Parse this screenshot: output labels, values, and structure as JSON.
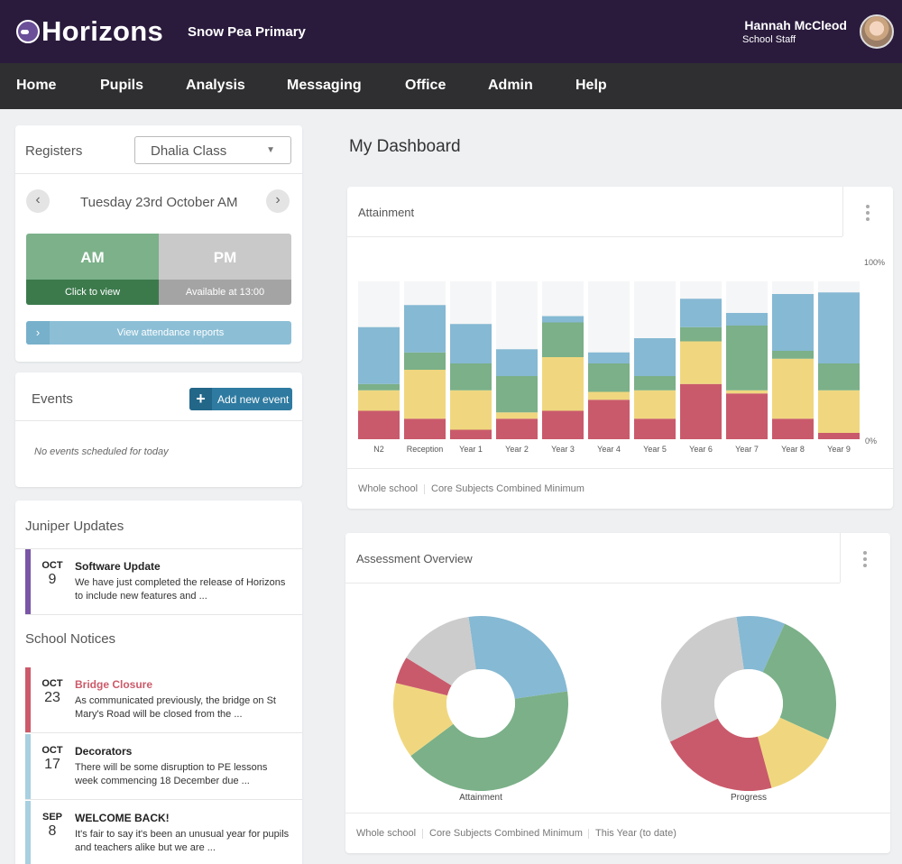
{
  "header": {
    "brand": "Horizons",
    "school": "Snow Pea Primary",
    "user_name": "Hannah McCleod",
    "user_role": "School Staff"
  },
  "nav": [
    "Home",
    "Pupils",
    "Analysis",
    "Messaging",
    "Office",
    "Admin",
    "Help"
  ],
  "registers": {
    "title": "Registers",
    "selected_class": "Dhalia Class",
    "date": "Tuesday 23rd October AM",
    "am_label": "AM",
    "am_sub": "Click to view",
    "pm_label": "PM",
    "pm_sub": "Available at 13:00",
    "attendance_button": "View attendance reports"
  },
  "events": {
    "title": "Events",
    "add_button": "Add new event",
    "empty": "No events scheduled for today"
  },
  "juniper_updates": {
    "title": "Juniper Updates",
    "items": [
      {
        "month": "OCT",
        "day": "9",
        "title": "Software Update",
        "body": "We have just completed the release of Horizons to include new features and ...",
        "color": "#7a56a6",
        "title_color": "#222"
      }
    ]
  },
  "school_notices": {
    "title": "School Notices",
    "items": [
      {
        "month": "OCT",
        "day": "23",
        "title": "Bridge Closure",
        "body": "As communicated previously, the bridge on St Mary's Road will be closed from the ...",
        "color": "#cc5a6a",
        "title_color": "#cc5a6a"
      },
      {
        "month": "OCT",
        "day": "17",
        "title": "Decorators",
        "body": "There will be some disruption to PE lessons week commencing 18 December due ...",
        "color": "#a8d0e0",
        "title_color": "#222"
      },
      {
        "month": "SEP",
        "day": "8",
        "title": "WELCOME BACK!",
        "body": "It's fair to say it's been an unusual year for pupils and teachers alike but we are ...",
        "color": "#a8d0e0",
        "title_color": "#222"
      }
    ]
  },
  "dashboard": {
    "title": "My Dashboard"
  },
  "attainment_card": {
    "title": "Attainment",
    "footer": [
      "Whole school",
      "Core Subjects Combined Minimum"
    ]
  },
  "assessment_card": {
    "title": "Assessment Overview",
    "footer": [
      "Whole school",
      "Core Subjects Combined Minimum",
      "This Year (to date)"
    ]
  },
  "colors": {
    "red": "#c95a6b",
    "yellow": "#f0d77f",
    "green": "#7bb088",
    "blue": "#86b9d3",
    "grey": "#cccccc",
    "empty": "#f5f6f7"
  },
  "chart_data": [
    {
      "type": "bar",
      "stacked": true,
      "categories": [
        "N2",
        "Reception",
        "Year 1",
        "Year 2",
        "Year 3",
        "Year 4",
        "Year 5",
        "Year 6",
        "Year 7",
        "Year 8",
        "Year 9"
      ],
      "ylim": [
        0,
        100
      ],
      "ytick_labels": [
        "100%",
        "0%"
      ],
      "series": [
        {
          "color": "#c95a6b",
          "values": [
            18,
            13,
            6,
            13,
            18,
            25,
            13,
            35,
            29,
            13,
            4
          ]
        },
        {
          "color": "#f0d77f",
          "values": [
            13,
            31,
            25,
            4,
            34,
            5,
            18,
            27,
            2,
            38,
            27
          ]
        },
        {
          "color": "#7bb088",
          "values": [
            4,
            11,
            17,
            23,
            22,
            18,
            9,
            9,
            41,
            5,
            17
          ]
        },
        {
          "color": "#86b9d3",
          "values": [
            36,
            30,
            25,
            17,
            4,
            7,
            24,
            18,
            8,
            36,
            45
          ]
        }
      ]
    },
    {
      "type": "pie",
      "label": "Attainment",
      "donut": true,
      "slices": [
        {
          "color": "#86b9d3",
          "value": 25
        },
        {
          "color": "#7bb088",
          "value": 42
        },
        {
          "color": "#f0d77f",
          "value": 14
        },
        {
          "color": "#c95a6b",
          "value": 5
        },
        {
          "color": "#cccccc",
          "value": 14
        }
      ]
    },
    {
      "type": "pie",
      "label": "Progress",
      "donut": true,
      "slices": [
        {
          "color": "#86b9d3",
          "value": 9
        },
        {
          "color": "#7bb088",
          "value": 25
        },
        {
          "color": "#f0d77f",
          "value": 14
        },
        {
          "color": "#c95a6b",
          "value": 22
        },
        {
          "color": "#cccccc",
          "value": 30
        }
      ]
    }
  ]
}
